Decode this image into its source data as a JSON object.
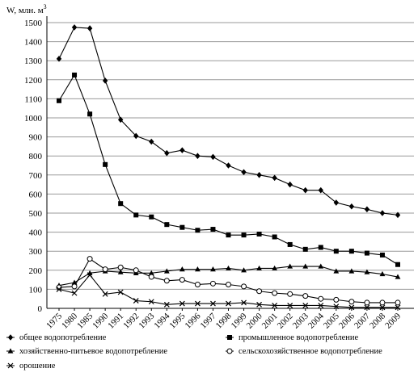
{
  "chart_data": {
    "type": "line",
    "title": "",
    "ylabel": "W, млн. м",
    "ylabel_sup": "3",
    "xlabel": "",
    "ylim": [
      0,
      1500
    ],
    "yticks": [
      0,
      100,
      200,
      300,
      400,
      500,
      600,
      700,
      800,
      900,
      1000,
      1100,
      1200,
      1300,
      1400,
      1500
    ],
    "grid": true,
    "legend_position": "bottom",
    "categories": [
      "1975",
      "1980",
      "1985",
      "1990",
      "1991",
      "1992",
      "1993",
      "1994",
      "1995",
      "1996",
      "1997",
      "1998",
      "1999",
      "2000",
      "2001",
      "2002",
      "2003",
      "2004",
      "2005",
      "2006",
      "2007",
      "2008",
      "2009"
    ],
    "series": [
      {
        "name": "общее водопотребление",
        "marker": "diamond",
        "values": [
          1310,
          1475,
          1470,
          1195,
          990,
          905,
          875,
          815,
          830,
          800,
          795,
          750,
          715,
          700,
          685,
          650,
          620,
          620,
          555,
          535,
          520,
          500,
          490
        ]
      },
      {
        "name": "промышленное водопотребление",
        "marker": "square",
        "values": [
          1090,
          1225,
          1020,
          755,
          550,
          490,
          480,
          440,
          425,
          410,
          415,
          385,
          385,
          390,
          375,
          335,
          310,
          320,
          300,
          300,
          290,
          280,
          230
        ]
      },
      {
        "name": "хозяйственно-питьевое водопотребление",
        "marker": "triangle",
        "values": [
          120,
          135,
          185,
          195,
          190,
          185,
          185,
          195,
          205,
          205,
          205,
          210,
          200,
          210,
          210,
          220,
          220,
          220,
          195,
          195,
          190,
          180,
          165
        ]
      },
      {
        "name": "сельскохозяйственное водопотребление",
        "marker": "circle",
        "values": [
          110,
          115,
          260,
          205,
          215,
          200,
          165,
          145,
          150,
          125,
          130,
          125,
          115,
          90,
          80,
          75,
          65,
          50,
          45,
          35,
          30,
          30,
          30
        ]
      },
      {
        "name": "орошение",
        "marker": "x",
        "values": [
          100,
          80,
          175,
          75,
          85,
          40,
          35,
          20,
          25,
          25,
          25,
          25,
          30,
          20,
          15,
          15,
          15,
          15,
          10,
          5,
          5,
          5,
          5
        ]
      }
    ]
  }
}
